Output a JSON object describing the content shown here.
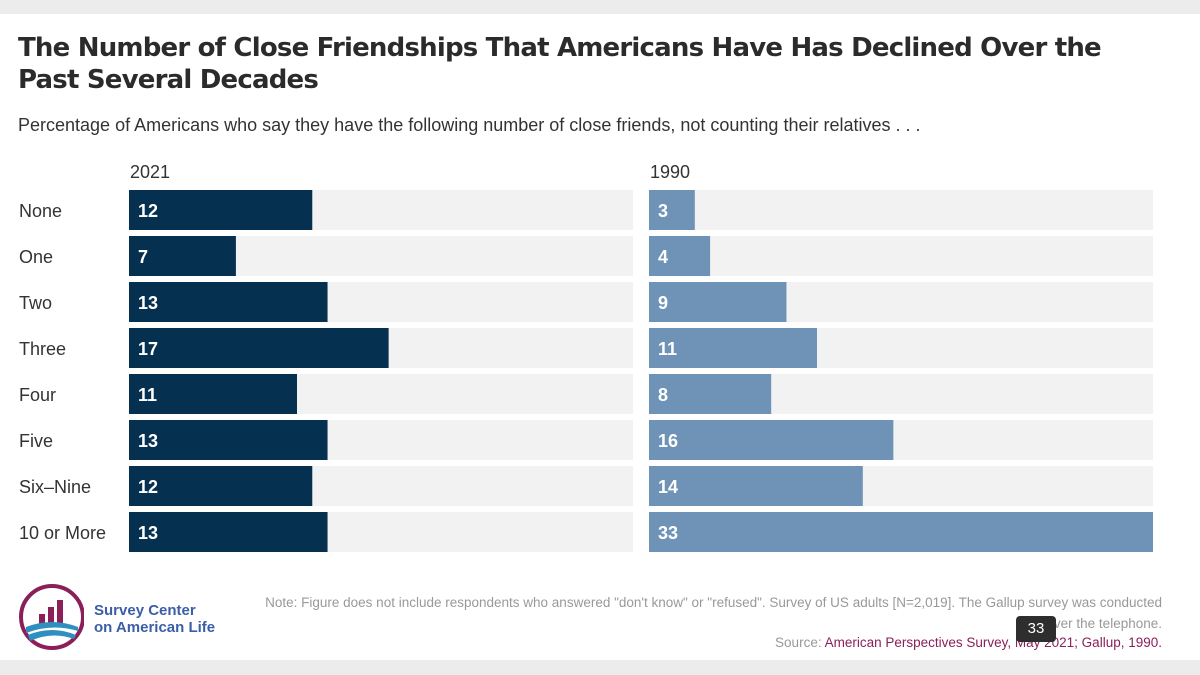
{
  "title": "The Number of Close Friendships That Americans Have Has Declined Over the Past Several Decades",
  "subtitle": "Percentage of Americans who say they have the following number of close friends, not counting their relatives . . .",
  "chart_data": {
    "type": "bar",
    "orientation": "horizontal",
    "categories": [
      "None",
      "One",
      "Two",
      "Three",
      "Four",
      "Five",
      "Six–Nine",
      "10 or More"
    ],
    "series": [
      {
        "name": "2021",
        "values": [
          12,
          7,
          13,
          17,
          11,
          13,
          12,
          13
        ],
        "color": "#053050"
      },
      {
        "name": "1990",
        "values": [
          3,
          4,
          9,
          11,
          8,
          16,
          14,
          33
        ],
        "color": "#6e93b7"
      }
    ],
    "xlim": [
      0,
      33
    ],
    "track_color": "#f2f2f2",
    "grid": false,
    "legend": "none"
  },
  "footer": {
    "logo_line1": "Survey Center",
    "logo_line2": "on American Life",
    "note": "Note: Figure does not include respondents who answered \"don't know\" or \"refused\". Survey of US adults [N=2,019]. The Gallup survey was conducted over the telephone.",
    "source_prefix": "Source: ",
    "source_text": "American Perspectives Survey, May 2021; Gallup, 1990."
  },
  "overlay": {
    "badge_text": "33"
  },
  "colors": {
    "dark_navy": "#053050",
    "steel_blue": "#6e93b7",
    "track": "#f2f2f2",
    "source_link": "#8a1f5a",
    "logo_blue": "#3b5ea8",
    "logo_maroon": "#8a1f5a"
  }
}
